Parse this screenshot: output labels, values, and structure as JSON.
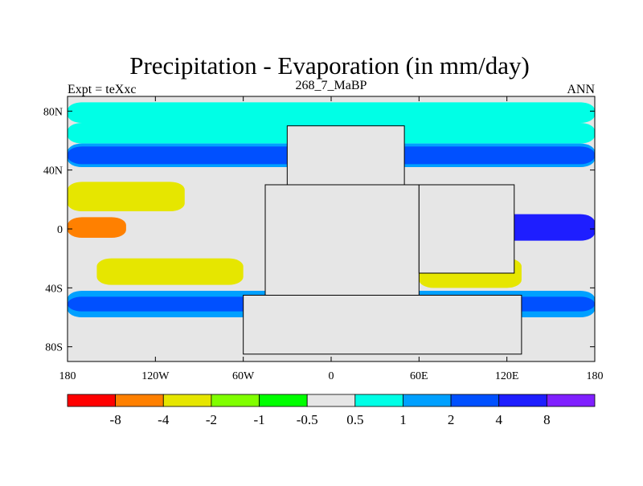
{
  "title": "Precipitation - Evaporation (in mm/day)",
  "subtitle_left": "Expt = teXxc",
  "subtitle_center": "268_7_MaBP",
  "subtitle_right": "ANN",
  "axes": {
    "x_ticks": [
      {
        "value": -180,
        "label": "180"
      },
      {
        "value": -120,
        "label": "120W"
      },
      {
        "value": -60,
        "label": "60W"
      },
      {
        "value": 0,
        "label": "0"
      },
      {
        "value": 60,
        "label": "60E"
      },
      {
        "value": 120,
        "label": "120E"
      },
      {
        "value": 180,
        "label": "180"
      }
    ],
    "y_ticks": [
      {
        "value": 80,
        "label": "80N"
      },
      {
        "value": 40,
        "label": "40N"
      },
      {
        "value": 0,
        "label": "0"
      },
      {
        "value": -40,
        "label": "40S"
      },
      {
        "value": -80,
        "label": "80S"
      }
    ],
    "x_range": [
      -180,
      180
    ],
    "y_range": [
      -90,
      90
    ]
  },
  "colorbar": {
    "colors": [
      "#ff0000",
      "#ff8000",
      "#e6e600",
      "#80ff00",
      "#00ff00",
      "#e6e6e6",
      "#00ffe6",
      "#00a0ff",
      "#0050ff",
      "#1e1eff",
      "#8020ff"
    ],
    "labels": [
      "-8",
      "-4",
      "-2",
      "-1",
      "-0.5",
      "0.5",
      "1",
      "2",
      "4",
      "8"
    ]
  },
  "map_data": {
    "type": "filled-contour",
    "variable": "precipitation minus evaporation",
    "units": "mm/day",
    "bands": [
      {
        "lat": [
          72,
          86
        ],
        "lon": [
          -180,
          180
        ],
        "cat": 6,
        "note": "polar"
      },
      {
        "lat": [
          58,
          72
        ],
        "lon": [
          -180,
          180
        ],
        "cat": 6
      },
      {
        "lat": [
          42,
          58
        ],
        "lon": [
          -180,
          180
        ],
        "cat": 7
      },
      {
        "lat": [
          44,
          56
        ],
        "lon": [
          -180,
          180
        ],
        "cat": 8
      },
      {
        "lat": [
          12,
          32
        ],
        "lon": [
          -180,
          -100
        ],
        "cat": 2
      },
      {
        "lat": [
          -6,
          8
        ],
        "lon": [
          -180,
          -140
        ],
        "cat": 1
      },
      {
        "lat": [
          -8,
          10
        ],
        "lon": [
          90,
          180
        ],
        "cat": 9
      },
      {
        "lat": [
          -38,
          -20
        ],
        "lon": [
          -160,
          -60
        ],
        "cat": 2
      },
      {
        "lat": [
          -40,
          -20
        ],
        "lon": [
          60,
          130
        ],
        "cat": 2
      },
      {
        "lat": [
          -60,
          -42
        ],
        "lon": [
          -180,
          180
        ],
        "cat": 7
      },
      {
        "lat": [
          -56,
          -46
        ],
        "lon": [
          -180,
          180
        ],
        "cat": 8
      }
    ],
    "land": [
      {
        "name": "north-landmass",
        "lon": [
          -30,
          50
        ],
        "lat": [
          30,
          70
        ]
      },
      {
        "name": "central-landmass",
        "lon": [
          -45,
          60
        ],
        "lat": [
          -45,
          30
        ]
      },
      {
        "name": "east-landmass",
        "lon": [
          60,
          125
        ],
        "lat": [
          -30,
          30
        ]
      },
      {
        "name": "south-landmass",
        "lon": [
          -60,
          130
        ],
        "lat": [
          -85,
          -45
        ]
      }
    ]
  }
}
